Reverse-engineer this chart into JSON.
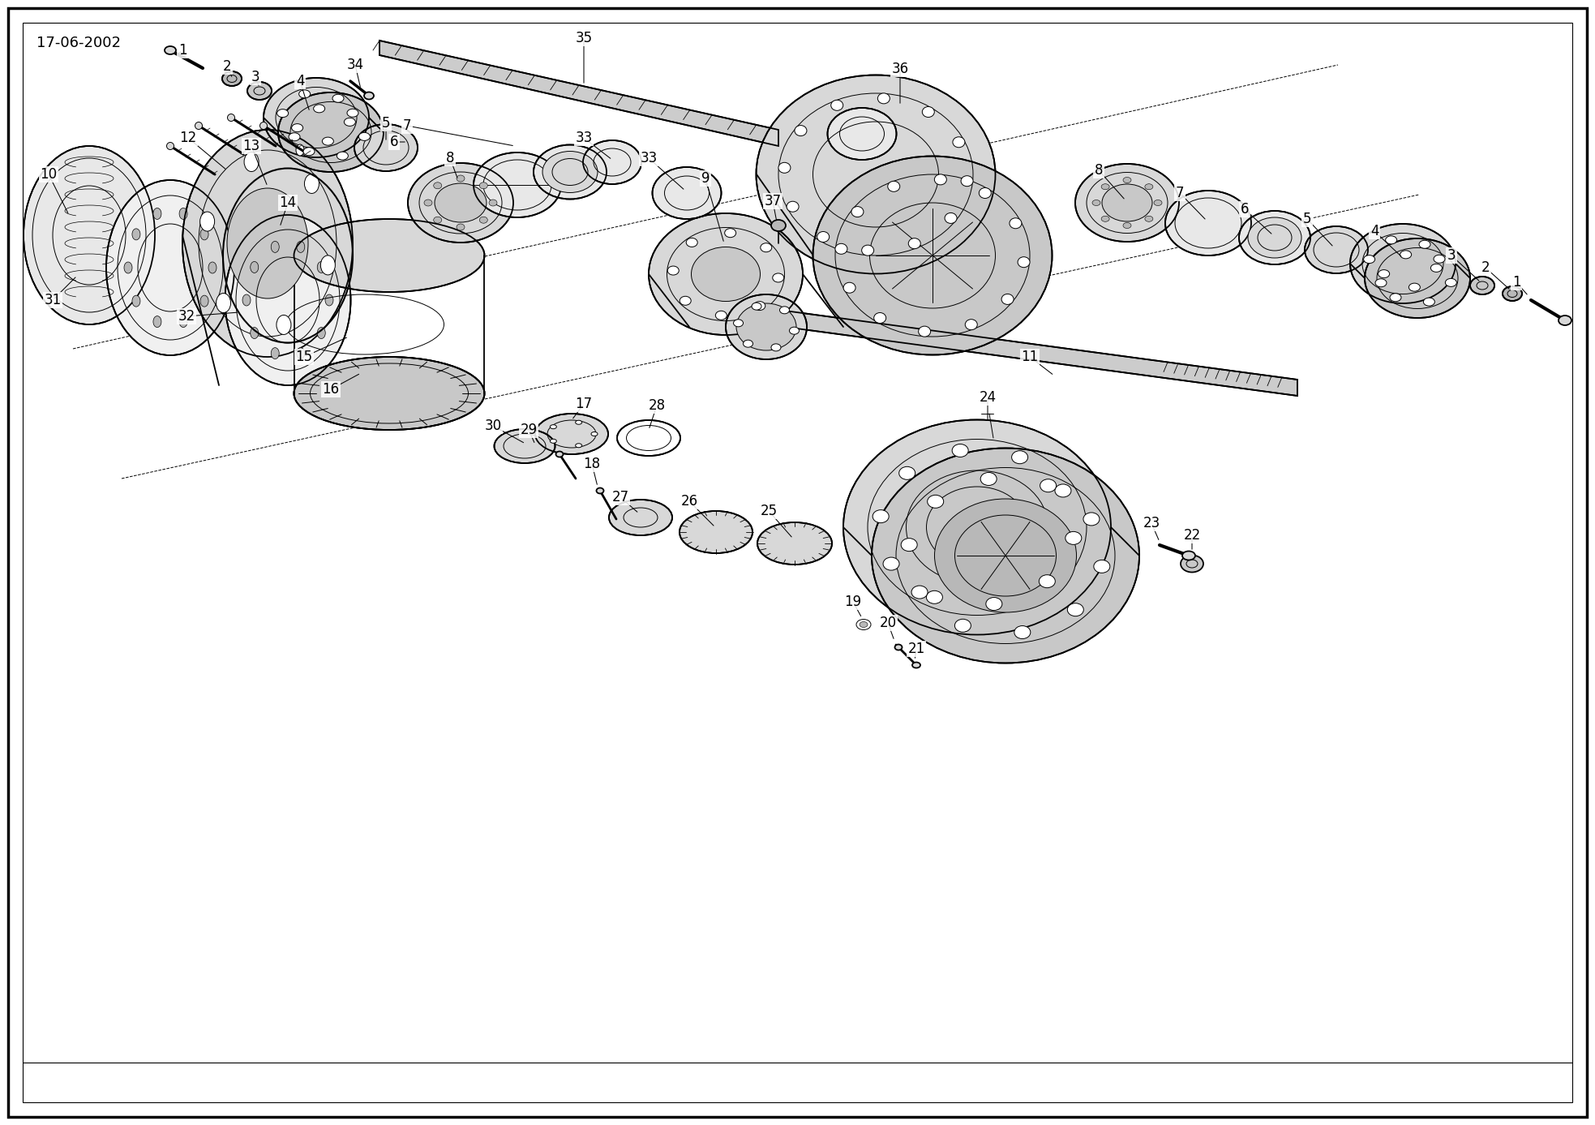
{
  "date_label": "17-06-2002",
  "bg": "#ffffff",
  "lc": "#000000",
  "gray1": "#e8e8e8",
  "gray2": "#d8d8d8",
  "gray3": "#c8c8c8",
  "gray4": "#b8b8b8",
  "gray5": "#f0f0f0",
  "shaft_color": "#cccccc",
  "border_lw": 2.5,
  "main_lw": 1.3,
  "thin_lw": 0.7,
  "label_fs": 12
}
